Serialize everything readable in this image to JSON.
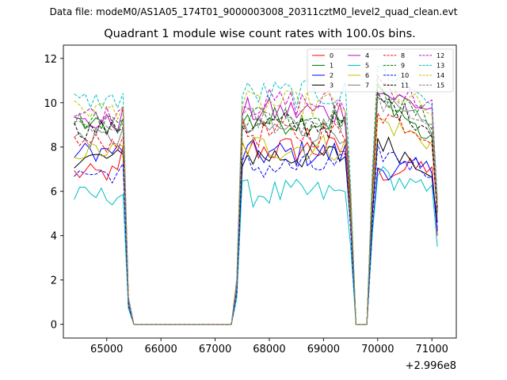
{
  "suptitle": "Data file: modeM0/AS1A05_174T01_9000003008_20311cztM0_level2_quad_clean.evt",
  "chart_data": {
    "type": "line",
    "title": "Quadrant 1 module wise count rates with 100.0s bins.",
    "xlabel": "",
    "ylabel": "",
    "x_offset_label": "+2.996e8",
    "xlim": [
      64200,
      71450
    ],
    "ylim": [
      -0.62,
      12.6
    ],
    "xticks": [
      65000,
      66000,
      67000,
      68000,
      69000,
      70000,
      71000
    ],
    "xtick_labels": [
      "65000",
      "66000",
      "67000",
      "68000",
      "69000",
      "70000",
      "71000"
    ],
    "yticks": [
      0,
      2,
      4,
      6,
      8,
      10,
      12
    ],
    "ytick_labels": [
      "0",
      "2",
      "4",
      "6",
      "8",
      "10",
      "12"
    ],
    "legend": {
      "location": "upper right",
      "columns": 4
    },
    "segments": [
      {
        "x": [
          64400,
          64500,
          64600,
          64700,
          64800,
          64900,
          65000,
          65100,
          65200,
          65300,
          65400,
          65500
        ]
      },
      {
        "x": [
          65500,
          67300
        ]
      },
      {
        "x": [
          67300,
          67400,
          67500,
          67600,
          67700,
          67800,
          67900,
          68000,
          68100,
          68200,
          68300,
          68400,
          68500,
          68600,
          68700,
          68800,
          68900,
          69000,
          69100,
          69200,
          69300,
          69400,
          69500,
          69600
        ]
      },
      {
        "x": [
          69600,
          69800
        ]
      },
      {
        "x": [
          69800,
          69900,
          70000,
          70100,
          70200,
          70300,
          70400,
          70500,
          70600,
          70700,
          70800,
          70900,
          71000,
          71100
        ]
      }
    ],
    "series": [
      {
        "name": "0",
        "color": "#ff0000",
        "dash": "solid",
        "levels": [
          6.8,
          7.9,
          6.8,
          7.2
        ]
      },
      {
        "name": "1",
        "color": "#008000",
        "dash": "solid",
        "levels": [
          9.0,
          9.2,
          10.6,
          7.9
        ]
      },
      {
        "name": "2",
        "color": "#0000ff",
        "dash": "solid",
        "levels": [
          7.8,
          7.7,
          7.0,
          7.0
        ]
      },
      {
        "name": "3",
        "color": "#000000",
        "dash": "solid",
        "levels": [
          7.5,
          7.6,
          8.3,
          6.9
        ]
      },
      {
        "name": "4",
        "color": "#c000c0",
        "dash": "solid",
        "levels": [
          9.1,
          9.6,
          10.5,
          9.6
        ]
      },
      {
        "name": "5",
        "color": "#00bfbf",
        "dash": "solid",
        "levels": [
          5.8,
          5.9,
          6.8,
          5.8
        ]
      },
      {
        "name": "6",
        "color": "#bfbf00",
        "dash": "solid",
        "levels": [
          7.8,
          8.0,
          9.2,
          8.1
        ]
      },
      {
        "name": "7",
        "color": "#808080",
        "dash": "solid",
        "levels": [
          8.4,
          8.8,
          9.9,
          8.8
        ]
      },
      {
        "name": "8",
        "color": "#ff0000",
        "dash": "dashed",
        "levels": [
          8.2,
          8.6,
          9.6,
          8.4
        ]
      },
      {
        "name": "9",
        "color": "#008000",
        "dash": "dashed",
        "levels": [
          9.2,
          9.4,
          10.4,
          9.1
        ]
      },
      {
        "name": "10",
        "color": "#0000ff",
        "dash": "dashed",
        "levels": [
          6.8,
          7.1,
          7.8,
          6.9
        ]
      },
      {
        "name": "11",
        "color": "#000000",
        "dash": "dashed",
        "levels": [
          8.8,
          9.0,
          10.2,
          8.7
        ]
      },
      {
        "name": "12",
        "color": "#c000c0",
        "dash": "dashed",
        "levels": [
          9.5,
          10.0,
          11.0,
          9.7
        ]
      },
      {
        "name": "13",
        "color": "#00bfbf",
        "dash": "dashed",
        "levels": [
          10.1,
          10.4,
          11.6,
          10.0
        ]
      },
      {
        "name": "14",
        "color": "#bfbf00",
        "dash": "dashed",
        "levels": [
          9.7,
          9.9,
          10.9,
          9.4
        ]
      },
      {
        "name": "15",
        "color": "#808080",
        "dash": "dashed",
        "levels": [
          8.8,
          9.2,
          10.1,
          9.0
        ]
      }
    ],
    "end_values": [
      4.0,
      5.2,
      4.2,
      4.6,
      5.3,
      3.5,
      4.9,
      4.7,
      5.0,
      5.5,
      4.3,
      5.1,
      5.6,
      5.7,
      5.4,
      5.0
    ]
  }
}
